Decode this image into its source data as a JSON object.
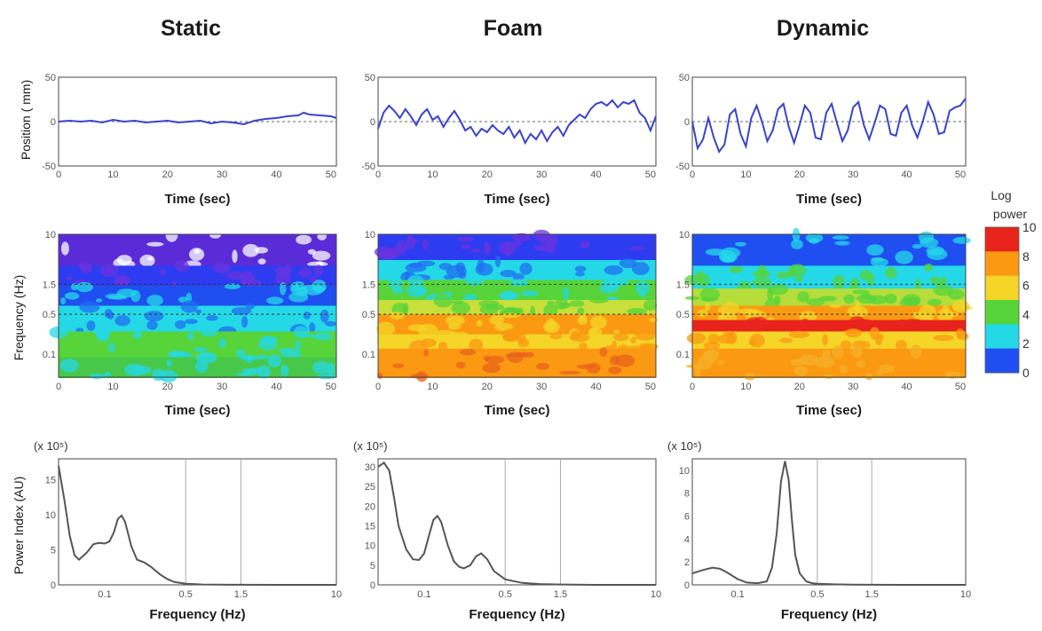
{
  "columns": [
    "Static",
    "Foam",
    "Dynamic"
  ],
  "colorbar": {
    "label_line1": "Log",
    "label_line2": "power",
    "ticks": [
      "10",
      "8",
      "6",
      "4",
      "2",
      "0"
    ],
    "colors": [
      "#e8231c",
      "#fb9a12",
      "#f4d528",
      "#56d43a",
      "#24d8e8",
      "#1f4ff0"
    ]
  },
  "chart_data": [
    {
      "type": "line",
      "panel": "position",
      "conditions": [
        "Static",
        "Foam",
        "Dynamic"
      ],
      "xlabel": "Time (sec)",
      "ylabel": "Position ( mm)",
      "xlim": [
        0,
        51
      ],
      "ylim": [
        -50,
        50
      ],
      "xticks": [
        "0",
        "10",
        "20",
        "30",
        "40",
        "50"
      ],
      "yticks": [
        "50",
        "0",
        "-50"
      ],
      "dashed_zero_line": true,
      "series": [
        {
          "x": [
            0,
            2,
            4,
            6,
            8,
            10,
            12,
            14,
            16,
            18,
            20,
            22,
            24,
            26,
            28,
            30,
            32,
            34,
            36,
            38,
            40,
            42,
            44,
            45,
            46,
            48,
            50,
            51
          ],
          "y": [
            0,
            1,
            0,
            1,
            -1,
            2,
            0,
            1,
            -1,
            0,
            1,
            -1,
            0,
            1,
            -2,
            0,
            -1,
            -3,
            1,
            3,
            4,
            6,
            7,
            10,
            8,
            7,
            6,
            4
          ]
        },
        {
          "x": [
            0,
            1,
            2,
            3,
            4,
            5,
            6,
            7,
            8,
            9,
            10,
            11,
            12,
            13,
            14,
            15,
            16,
            17,
            18,
            19,
            20,
            21,
            22,
            23,
            24,
            25,
            26,
            27,
            28,
            29,
            30,
            31,
            32,
            33,
            34,
            35,
            36,
            37,
            38,
            39,
            40,
            41,
            42,
            43,
            44,
            45,
            46,
            47,
            48,
            49,
            50,
            51
          ],
          "y": [
            -8,
            10,
            18,
            12,
            4,
            14,
            6,
            -4,
            8,
            14,
            2,
            6,
            -6,
            4,
            12,
            2,
            -10,
            -6,
            -16,
            -8,
            -12,
            -4,
            -10,
            -14,
            -6,
            -18,
            -10,
            -24,
            -14,
            -20,
            -10,
            -22,
            -12,
            -6,
            -16,
            -4,
            2,
            8,
            4,
            14,
            20,
            22,
            18,
            24,
            16,
            22,
            20,
            24,
            10,
            4,
            -10,
            6
          ]
        },
        {
          "x": [
            0,
            1,
            2,
            3,
            4,
            5,
            6,
            7,
            8,
            9,
            10,
            11,
            12,
            13,
            14,
            15,
            16,
            17,
            18,
            19,
            20,
            21,
            22,
            23,
            24,
            25,
            26,
            27,
            28,
            29,
            30,
            31,
            32,
            33,
            34,
            35,
            36,
            37,
            38,
            39,
            40,
            41,
            42,
            43,
            44,
            45,
            46,
            47,
            48,
            49,
            50,
            51
          ],
          "y": [
            0,
            -30,
            -20,
            4,
            -18,
            -34,
            -26,
            8,
            14,
            -14,
            -28,
            4,
            18,
            0,
            -22,
            -10,
            14,
            20,
            -6,
            -24,
            -4,
            18,
            10,
            -18,
            -20,
            10,
            20,
            -2,
            -22,
            -10,
            16,
            22,
            -4,
            -20,
            -2,
            18,
            14,
            -14,
            -16,
            10,
            18,
            -4,
            -18,
            0,
            22,
            8,
            -14,
            -12,
            12,
            16,
            18,
            26
          ]
        }
      ]
    },
    {
      "type": "heatmap",
      "panel": "wavelet",
      "conditions": [
        "Static",
        "Foam",
        "Dynamic"
      ],
      "xlabel": "Time (sec)",
      "ylabel": "Frequency (Hz)",
      "xlim": [
        0,
        51
      ],
      "xticks": [
        "0",
        "10",
        "20",
        "30",
        "40",
        "50"
      ],
      "yticks": [
        "10",
        "1.5",
        "0.5",
        "0.1"
      ],
      "dashed_lines_hz": [
        1.5,
        0.5
      ]
    },
    {
      "type": "line",
      "panel": "power_spectrum",
      "conditions": [
        "Static",
        "Foam",
        "Dynamic"
      ],
      "xlabel": "Frequency (Hz)",
      "ylabel": "Power Index (AU)",
      "xscale": "log",
      "xlim": [
        0.04,
        10
      ],
      "xticks": [
        "0.1",
        "0.5",
        "1.5",
        "10"
      ],
      "reference_lines_hz": [
        0.5,
        1.5
      ],
      "multiplier_label": "(x 10⁵)",
      "series": [
        {
          "ylim": [
            0,
            18
          ],
          "yticks": [
            "15",
            "10",
            "5",
            "0"
          ],
          "x": [
            0.04,
            0.045,
            0.05,
            0.055,
            0.06,
            0.07,
            0.08,
            0.09,
            0.1,
            0.11,
            0.12,
            0.13,
            0.14,
            0.15,
            0.17,
            0.19,
            0.22,
            0.25,
            0.3,
            0.35,
            0.4,
            0.5,
            0.7,
            1.0,
            1.5,
            3.0,
            10.0
          ],
          "y": [
            17,
            12,
            7,
            4.2,
            3.6,
            4.6,
            5.8,
            6.0,
            5.9,
            6.2,
            7.5,
            9.4,
            9.9,
            9.0,
            5.5,
            3.6,
            3.2,
            2.6,
            1.5,
            0.8,
            0.4,
            0.15,
            0.05,
            0.02,
            0.01,
            0,
            0
          ]
        },
        {
          "ylim": [
            0,
            32
          ],
          "yticks": [
            "30",
            "25",
            "20",
            "15",
            "10",
            "5",
            "0"
          ],
          "x": [
            0.04,
            0.045,
            0.05,
            0.055,
            0.06,
            0.07,
            0.08,
            0.09,
            0.1,
            0.11,
            0.12,
            0.13,
            0.14,
            0.16,
            0.18,
            0.2,
            0.22,
            0.25,
            0.28,
            0.31,
            0.35,
            0.4,
            0.5,
            0.7,
            1.0,
            1.5,
            3.0,
            10.0
          ],
          "y": [
            30,
            31,
            29,
            22,
            15,
            9,
            6.5,
            6.3,
            8,
            12.5,
            16.5,
            17.5,
            16,
            10,
            6,
            4.6,
            4.2,
            5,
            7.2,
            8,
            6.5,
            3.5,
            1.4,
            0.5,
            0.2,
            0.1,
            0,
            0
          ]
        },
        {
          "ylim": [
            0,
            11
          ],
          "yticks": [
            "10",
            "8",
            "6",
            "4",
            "2",
            "0"
          ],
          "x": [
            0.04,
            0.05,
            0.06,
            0.07,
            0.08,
            0.1,
            0.12,
            0.15,
            0.18,
            0.2,
            0.22,
            0.24,
            0.26,
            0.28,
            0.3,
            0.32,
            0.35,
            0.4,
            0.45,
            0.5,
            0.7,
            1.0,
            1.5,
            3.0,
            10.0
          ],
          "y": [
            1.0,
            1.3,
            1.5,
            1.4,
            1.1,
            0.5,
            0.2,
            0.15,
            0.3,
            1.5,
            4.5,
            9.0,
            10.8,
            9.2,
            5.5,
            2.6,
            1.0,
            0.3,
            0.15,
            0.1,
            0.05,
            0.02,
            0.01,
            0,
            0
          ]
        }
      ]
    }
  ]
}
